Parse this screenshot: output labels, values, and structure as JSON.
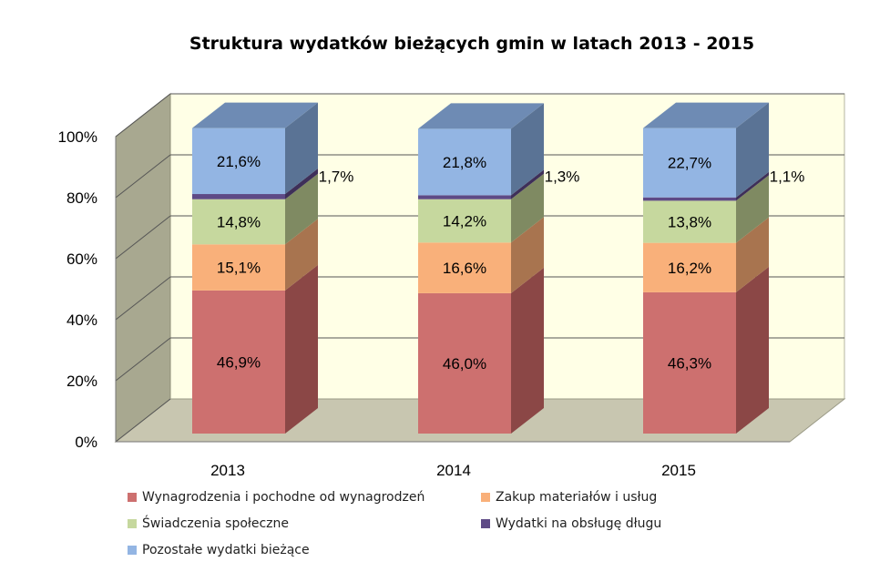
{
  "chart_data": {
    "type": "bar",
    "stacked": true,
    "three_d": true,
    "title": "Struktura wydatków bieżących gmin w latach 2013 - 2015",
    "categories": [
      "2013",
      "2014",
      "2015"
    ],
    "ylim": [
      0,
      100
    ],
    "yticks": [
      "0%",
      "20%",
      "40%",
      "60%",
      "80%",
      "100%"
    ],
    "grid": true,
    "legend_position": "bottom",
    "series": [
      {
        "name": "Wynagrodzenia i pochodne od wynagrodzeń",
        "values": [
          46.9,
          46.0,
          46.3
        ],
        "labels": [
          "46,9%",
          "46,0%",
          "46,3%"
        ],
        "color": "#cd706f",
        "side": "#8b4746",
        "top": "#d99190"
      },
      {
        "name": "Zakup materiałów i usług",
        "values": [
          15.1,
          16.6,
          16.2
        ],
        "labels": [
          "15,1%",
          "16,6%",
          "16,2%"
        ],
        "color": "#f9b07a",
        "side": "#a8744f",
        "top": "#fbc59c"
      },
      {
        "name": "Świadczenia społeczne",
        "values": [
          14.8,
          14.2,
          13.8
        ],
        "labels": [
          "14,8%",
          "14,2%",
          "13,8%"
        ],
        "color": "#c6d89e",
        "side": "#7f8a62",
        "top": "#d6e3b8"
      },
      {
        "name": "Wydatki na obsługę długu",
        "values": [
          1.7,
          1.3,
          1.1
        ],
        "labels": [
          "1,7%",
          "1,3%",
          "1,1%"
        ],
        "color": "#5e4a86",
        "side": "#3e2f59",
        "top": "#7a66a3"
      },
      {
        "name": "Pozostałe wydatki bieżące",
        "values": [
          21.6,
          21.8,
          22.7
        ],
        "labels": [
          "21,6%",
          "21,8%",
          "22,7%"
        ],
        "color": "#93b5e3",
        "side": "#5a7395",
        "top": "#6e8bb4"
      }
    ]
  }
}
